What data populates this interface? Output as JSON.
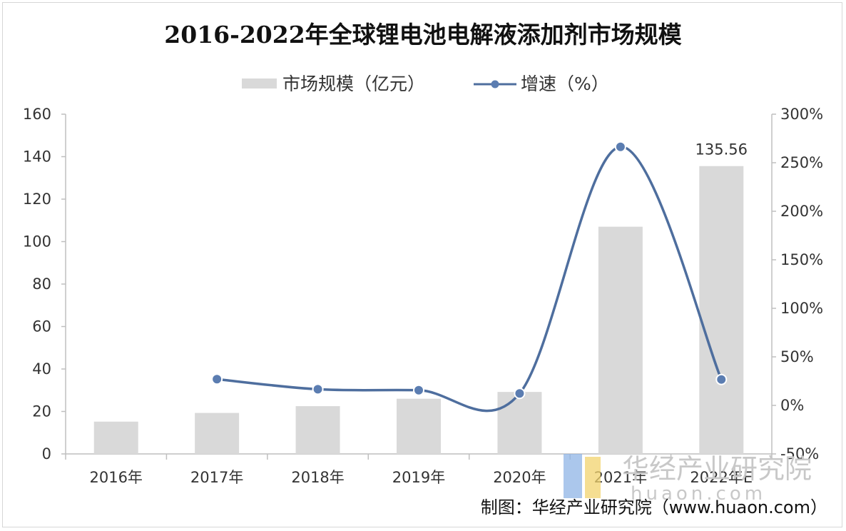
{
  "chart_data": {
    "type": "bar",
    "title": "2016-2022年全球锂电池电解液添加剂市场规模",
    "categories": [
      "2016年",
      "2017年",
      "2018年",
      "2019年",
      "2020年",
      "2021年",
      "2022年E"
    ],
    "series": [
      {
        "name": "市场规模（亿元）",
        "type": "bar",
        "axis": "left",
        "values": [
          15.2,
          19.3,
          22.5,
          26.0,
          29.2,
          107.0,
          135.56
        ]
      },
      {
        "name": "增速（%）",
        "type": "line",
        "axis": "right",
        "smooth": true,
        "values": [
          null,
          27.0,
          16.6,
          15.6,
          12.3,
          266.4,
          26.7
        ]
      }
    ],
    "data_labels": [
      {
        "category": "2022年E",
        "text": "135.56"
      }
    ],
    "y_left": {
      "min": 0,
      "max": 160,
      "ticks": [
        "0",
        "20",
        "40",
        "60",
        "80",
        "100",
        "120",
        "140",
        "160"
      ]
    },
    "y_right": {
      "min": -50,
      "max": 300,
      "ticks": [
        "-50%",
        "0%",
        "50%",
        "100%",
        "150%",
        "200%",
        "250%",
        "300%"
      ]
    },
    "legend_position": "top-center",
    "grid": false,
    "colors": {
      "bar": "#d9d9d9",
      "line": "#4e6e9e",
      "marker": "#5b7db1"
    }
  },
  "source": "制图：华经产业研究院（www.huaon.com）",
  "watermark": {
    "cn": "华经产业研究院",
    "en": "huaon.com"
  }
}
